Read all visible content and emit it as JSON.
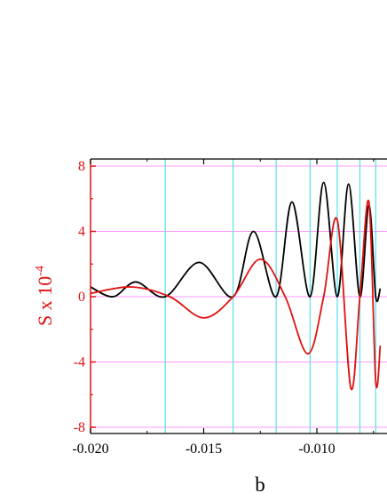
{
  "chart_data": {
    "type": "line",
    "title": "",
    "xlabel": "b",
    "ylabel": "S x 10",
    "ylabel_exponent": "-4",
    "xlim": [
      -0.02,
      -0.0072
    ],
    "ylim": [
      -8.4,
      8.6
    ],
    "x_ticks": [
      -0.02,
      -0.015,
      -0.01
    ],
    "x_tick_labels": [
      "-0.020",
      "-0.015",
      "-0.010"
    ],
    "y_ticks": [
      8,
      4,
      0,
      -4,
      -8
    ],
    "y_tick_labels": [
      "8",
      "4",
      "0",
      "-4",
      "-8"
    ],
    "grid": {
      "horizontal": true,
      "vertical_at_black_minima": true
    },
    "vertical_grid_x": [
      -0.0167,
      -0.0137,
      -0.0118,
      -0.0103,
      -0.0091,
      -0.0081,
      -0.0074
    ],
    "series": [
      {
        "color": "#000000",
        "x": [
          -0.02,
          -0.019,
          -0.018,
          -0.0167,
          -0.0152,
          -0.0137,
          -0.0128,
          -0.0118,
          -0.0111,
          -0.0103,
          -0.0097,
          -0.0091,
          -0.0086,
          -0.0081,
          -0.0077,
          -0.0074,
          -0.0072
        ],
        "y": [
          0.6,
          0.0,
          0.9,
          0.0,
          2.1,
          0.0,
          4.0,
          0.0,
          5.8,
          0.0,
          7.0,
          0.0,
          6.9,
          0.0,
          5.6,
          0.0,
          0.5
        ]
      },
      {
        "color": "#e01010",
        "x": [
          -0.02,
          -0.0182,
          -0.0165,
          -0.015,
          -0.0137,
          -0.0125,
          -0.0114,
          -0.0104,
          -0.0097,
          -0.0091,
          -0.0085,
          -0.0081,
          -0.0077,
          -0.0074,
          -0.0072
        ],
        "y": [
          0.2,
          0.6,
          0.0,
          -1.3,
          0.0,
          2.3,
          0.0,
          -3.5,
          0.0,
          4.7,
          -5.6,
          0.0,
          5.8,
          -5.2,
          -3.0
        ]
      }
    ],
    "colors": {
      "left_axis": "#e01010",
      "grid_horizontal": "#ff99ff",
      "grid_vertical": "#55e0e8"
    }
  }
}
